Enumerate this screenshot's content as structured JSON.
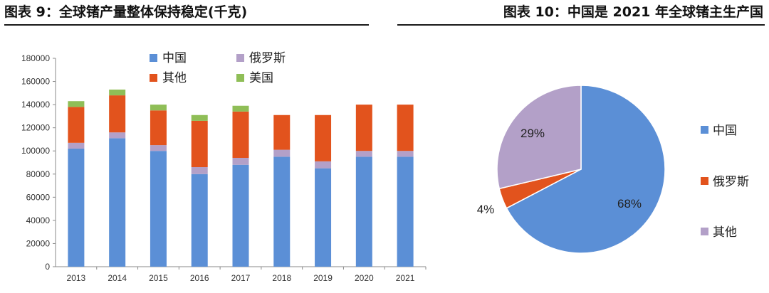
{
  "titles": {
    "left": "图表 9：全球锗产量整体保持稳定(千克)",
    "right": "图表 10：中国是 2021 年全球锗主生产国"
  },
  "colors": {
    "china": "#5b8fd6",
    "russia": "#e2531d",
    "other": "#b3a0c8",
    "usa": "#8fbe57"
  },
  "chart_data": [
    {
      "type": "bar",
      "stacked": true,
      "title": "全球锗产量整体保持稳定(千克)",
      "xlabel": "",
      "ylabel": "",
      "categories": [
        "2013",
        "2014",
        "2015",
        "2016",
        "2017",
        "2018",
        "2019",
        "2020",
        "2021"
      ],
      "ylim": [
        0,
        180000
      ],
      "yticks": [
        0,
        20000,
        40000,
        60000,
        80000,
        100000,
        120000,
        140000,
        160000,
        180000
      ],
      "grid": false,
      "legend_position": "top",
      "series": [
        {
          "name": "中国",
          "color_key": "china",
          "values": [
            102000,
            111000,
            100000,
            80000,
            88000,
            95000,
            85000,
            95000,
            95000
          ]
        },
        {
          "name": "俄罗斯",
          "color_key": "other",
          "values": [
            5000,
            5000,
            5000,
            6000,
            6000,
            6000,
            6000,
            5000,
            5000
          ]
        },
        {
          "name": "其他",
          "color_key": "russia",
          "values": [
            31000,
            32000,
            30000,
            40000,
            40000,
            30000,
            40000,
            40000,
            40000
          ]
        },
        {
          "name": "美国",
          "color_key": "usa",
          "values": [
            5000,
            5000,
            5000,
            5000,
            5000,
            0,
            0,
            0,
            0
          ]
        }
      ],
      "legend": [
        {
          "name": "中国",
          "color_key": "china"
        },
        {
          "name": "俄罗斯",
          "color_key": "other"
        },
        {
          "name": "其他",
          "color_key": "russia"
        },
        {
          "name": "美国",
          "color_key": "usa"
        }
      ]
    },
    {
      "type": "pie",
      "title": "中国是 2021 年全球锗主生产国",
      "legend_position": "right",
      "slices": [
        {
          "name": "中国",
          "value": 68,
          "label": "68%",
          "color_key": "china"
        },
        {
          "name": "俄罗斯",
          "value": 4,
          "label": "4%",
          "color_key": "russia"
        },
        {
          "name": "其他",
          "value": 29,
          "label": "29%",
          "color_key": "other"
        }
      ]
    }
  ]
}
